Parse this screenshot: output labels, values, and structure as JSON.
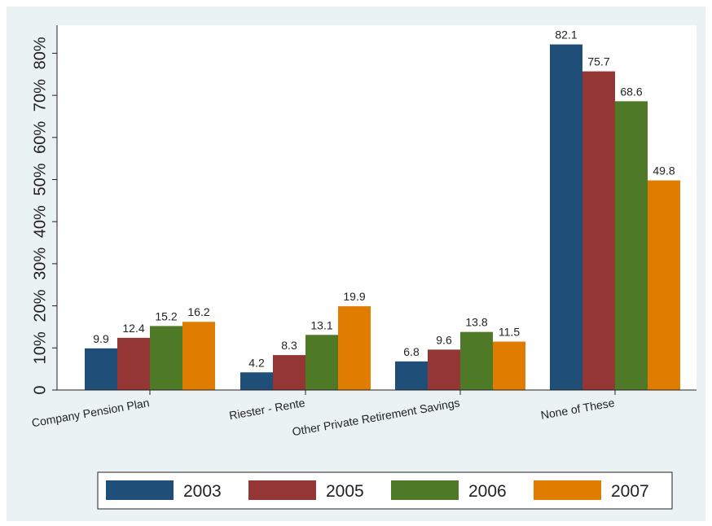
{
  "chart_data": {
    "type": "bar",
    "title": "",
    "xlabel": "",
    "ylabel": "",
    "categories": [
      "Company Pension Plan",
      "Riester - Rente",
      "Other Private Retirement Savings",
      "None of These"
    ],
    "series": [
      {
        "name": "2003",
        "color": "#1f4e79",
        "values": [
          9.9,
          4.2,
          6.8,
          82.1
        ]
      },
      {
        "name": "2005",
        "color": "#943634",
        "values": [
          12.4,
          8.3,
          9.6,
          75.7
        ]
      },
      {
        "name": "2006",
        "color": "#4e7a27",
        "values": [
          15.2,
          13.1,
          13.8,
          68.6
        ]
      },
      {
        "name": "2007",
        "color": "#e07c00",
        "values": [
          16.2,
          19.9,
          11.5,
          49.8
        ]
      }
    ],
    "value_labels": [
      [
        "9.9",
        "4.2",
        "6.8",
        "82.1"
      ],
      [
        "12.4",
        "8.3",
        "9.6",
        "75.7"
      ],
      [
        "15.2",
        "13.1",
        "13.8",
        "68.6"
      ],
      [
        "16.2",
        "19.9",
        "11.5",
        "49.8"
      ]
    ],
    "ylim": [
      0,
      86
    ],
    "yticks": [
      0,
      10,
      20,
      30,
      40,
      50,
      60,
      70,
      80
    ],
    "ytick_labels": [
      "0",
      "10%",
      "20%",
      "30%",
      "40%",
      "50%",
      "60%",
      "70%",
      "80%"
    ],
    "grid": false,
    "legend_position": "bottom",
    "colors": {
      "page_background": "#ffffff",
      "outer_background": "#eaf2f3",
      "plot_background": "#ffffff",
      "axis": "#222222",
      "text": "#222222"
    }
  }
}
